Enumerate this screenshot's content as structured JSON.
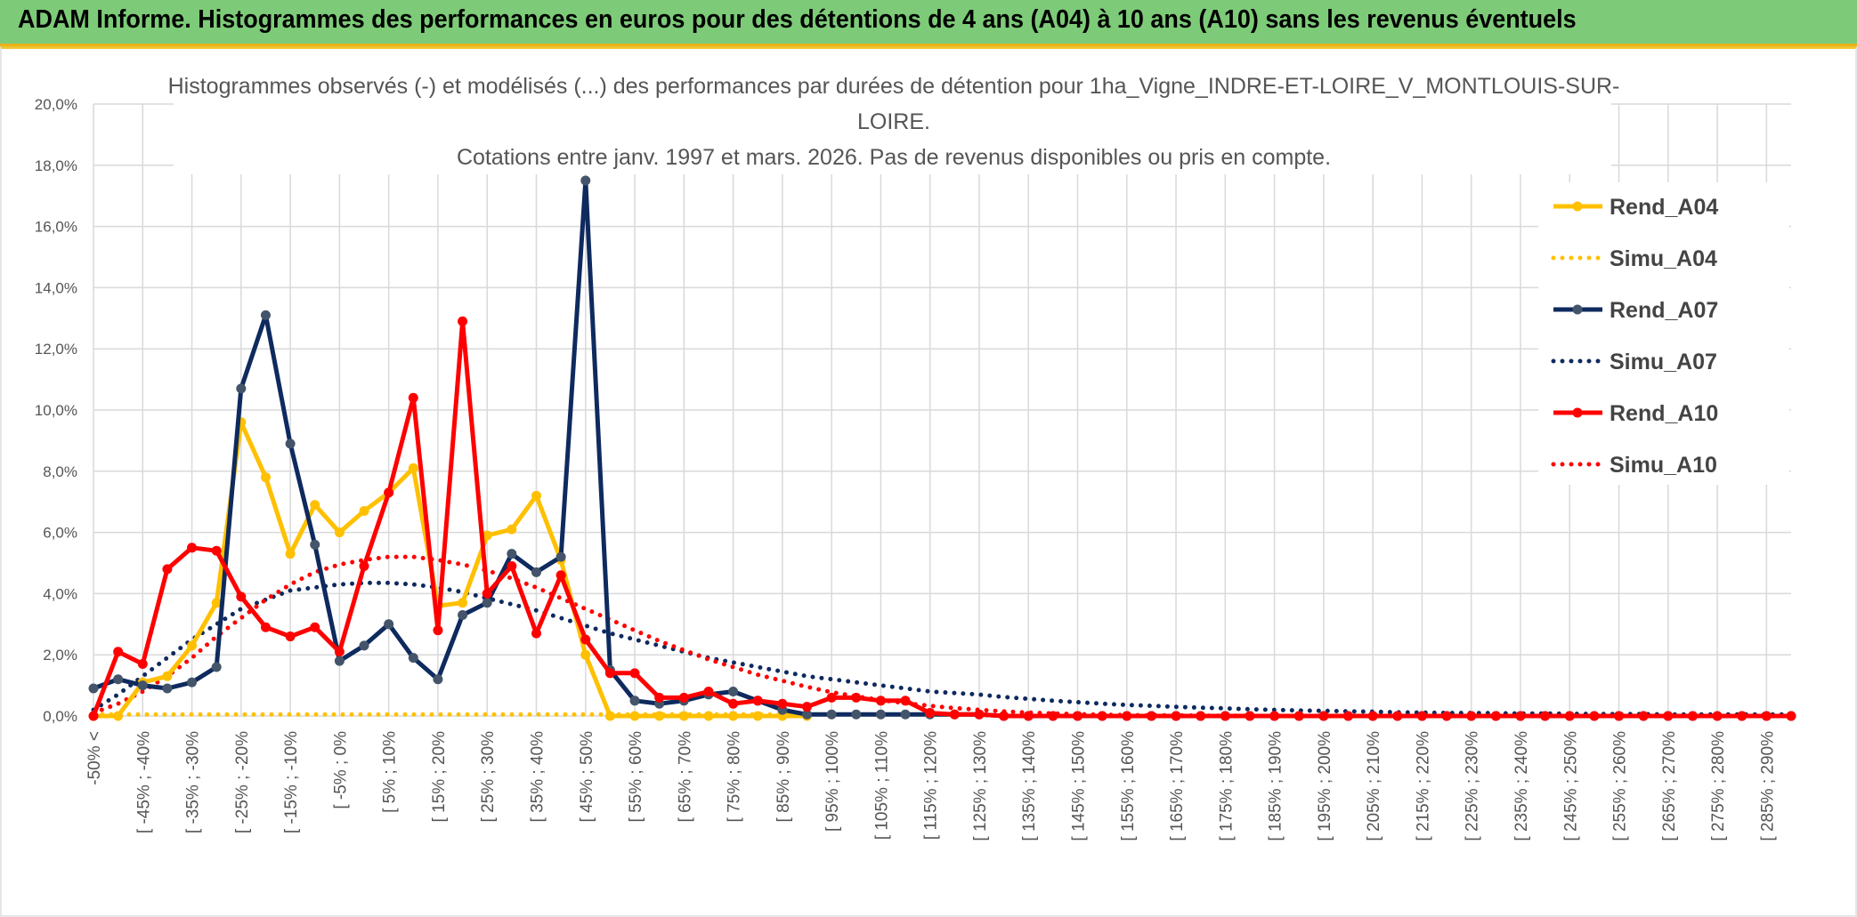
{
  "header": {
    "title": "ADAM Informe. Histogrammes des performances en euros pour des détentions de 4 ans (A04) à 10 ans (A10) sans les revenus éventuels"
  },
  "colors": {
    "header_bg": "#7dcb78",
    "accent": "#e9b21a",
    "A04": "#ffc000",
    "A07": "#0e2a5e",
    "A10": "#ff0000",
    "grid": "#d9d9d9"
  },
  "chart_data": {
    "type": "line",
    "title_lines": [
      "Histogrammes observés (-) et modélisés (...) des performances par durées de détention pour 1ha_Vigne_INDRE-ET-LOIRE_V_MONTLOUIS-SUR-",
      "LOIRE.",
      "Cotations entre janv. 1997 et mars. 2026. Pas de revenus disponibles ou pris en compte."
    ],
    "ylim": [
      0,
      20
    ],
    "y_ticks": [
      "0,0%",
      "2,0%",
      "4,0%",
      "6,0%",
      "8,0%",
      "10,0%",
      "12,0%",
      "14,0%",
      "16,0%",
      "18,0%",
      "20,0%"
    ],
    "legend_position": "right",
    "x_labels": [
      "-50% <",
      "[ -45% ; -40%",
      "[ -35% ; -30%",
      "[ -25% ; -20%",
      "[ -15% ; -10%",
      "[ -5% ; 0%",
      "[ 5% ; 10%",
      "[ 15% ; 20%",
      "[ 25% ; 30%",
      "[ 35% ; 40%",
      "[ 45% ; 50%",
      "[ 55% ; 60%",
      "[ 65% ; 70%",
      "[ 75% ; 80%",
      "[ 85% ; 90%",
      "[ 95% ; 100%",
      "[ 105% ; 110%",
      "[ 115% ; 120%",
      "[ 125% ; 130%",
      "[ 135% ; 140%",
      "[ 145% ; 150%",
      "[ 155% ; 160%",
      "[ 165% ; 170%",
      "[ 175% ; 180%",
      "[ 185% ; 190%",
      "[ 195% ; 200%",
      "[ 205% ; 210%",
      "[ 215% ; 220%",
      "[ 225% ; 230%",
      "[ 235% ; 240%",
      "[ 245% ; 250%",
      "[ 255% ; 260%",
      "[ 265% ; 270%",
      "[ 275% ; 280%",
      "[ 285% ; 290%"
    ],
    "series": [
      {
        "name": "Rend_A04",
        "style": "solid",
        "color": "#ffc000",
        "values": [
          0.0,
          0.0,
          1.1,
          1.3,
          2.3,
          3.7,
          9.6,
          7.8,
          5.3,
          6.9,
          6.0,
          6.7,
          7.3,
          8.1,
          3.6,
          3.7,
          5.9,
          6.1,
          7.2,
          5.1,
          2.0,
          0.0,
          0.0,
          0.0,
          0.0,
          0.0,
          0.0,
          0.0,
          0.0,
          0.0
        ]
      },
      {
        "name": "Simu_A04",
        "style": "dotted",
        "color": "#ffc000",
        "values": [
          0.05,
          0.05,
          0.05,
          0.05,
          0.05,
          0.05,
          0.05,
          0.05,
          0.05,
          0.05,
          0.05,
          0.05,
          0.05,
          0.05,
          0.05,
          0.05,
          0.05,
          0.05,
          0.05,
          0.05,
          0.05,
          0.05,
          0.05,
          0.05,
          0.05,
          0.05,
          0.05,
          0.05,
          0.05,
          0.05
        ]
      },
      {
        "name": "Rend_A07",
        "style": "solid",
        "color": "#0e2a5e",
        "values": [
          0.9,
          1.2,
          1.0,
          0.9,
          1.1,
          1.6,
          10.7,
          13.1,
          8.9,
          5.6,
          1.8,
          2.3,
          3.0,
          1.9,
          1.2,
          3.3,
          3.7,
          5.3,
          4.7,
          5.2,
          17.5,
          1.5,
          0.5,
          0.4,
          0.5,
          0.7,
          0.8,
          0.5,
          0.2,
          0.05,
          0.05,
          0.05,
          0.05,
          0.05,
          0.05,
          0.05,
          0.05,
          0.0,
          0.0,
          0.0,
          0.0,
          0.0,
          0.0,
          0.0,
          0.0,
          0.0,
          0.0,
          0.0,
          0.0,
          0.0,
          0.0,
          0.0,
          0.0,
          0.0,
          0.0,
          0.0,
          0.0,
          0.0,
          0.0,
          0.0,
          0.0,
          0.0,
          0.0,
          0.0,
          0.0,
          0.0,
          0.0,
          0.0,
          0.0,
          0.0
        ]
      },
      {
        "name": "Simu_A07",
        "style": "dotted",
        "color": "#0e2a5e",
        "values": [
          0.2,
          0.7,
          1.3,
          1.9,
          2.5,
          3.0,
          3.5,
          3.8,
          4.1,
          4.2,
          4.3,
          4.35,
          4.35,
          4.3,
          4.2,
          4.05,
          3.85,
          3.65,
          3.45,
          3.2,
          2.95,
          2.7,
          2.5,
          2.3,
          2.1,
          1.9,
          1.75,
          1.6,
          1.45,
          1.3,
          1.2,
          1.1,
          1.0,
          0.9,
          0.8,
          0.75,
          0.7,
          0.62,
          0.56,
          0.5,
          0.45,
          0.4,
          0.36,
          0.33,
          0.3,
          0.27,
          0.25,
          0.22,
          0.2,
          0.18,
          0.17,
          0.15,
          0.14,
          0.12,
          0.11,
          0.1,
          0.1,
          0.09,
          0.08,
          0.08,
          0.07,
          0.07,
          0.06,
          0.06,
          0.05,
          0.05,
          0.05,
          0.05,
          0.05,
          0.05
        ]
      },
      {
        "name": "Rend_A10",
        "style": "solid",
        "color": "#ff0000",
        "values": [
          0.0,
          2.1,
          1.7,
          4.8,
          5.5,
          5.4,
          3.9,
          2.9,
          2.6,
          2.9,
          2.1,
          4.9,
          7.3,
          10.4,
          2.8,
          12.9,
          4.0,
          4.9,
          2.7,
          4.6,
          2.5,
          1.4,
          1.4,
          0.6,
          0.6,
          0.8,
          0.4,
          0.5,
          0.4,
          0.3,
          0.6,
          0.6,
          0.5,
          0.5,
          0.1,
          0.05,
          0.05,
          0.0,
          0.0,
          0.0,
          0.0,
          0.0,
          0.0,
          0.0,
          0.0,
          0.0,
          0.0,
          0.0,
          0.0,
          0.0,
          0.0,
          0.0,
          0.0,
          0.0,
          0.0,
          0.0,
          0.0,
          0.0,
          0.0,
          0.0,
          0.0,
          0.0,
          0.0,
          0.0,
          0.0,
          0.0,
          0.0,
          0.0,
          0.0,
          0.0
        ]
      },
      {
        "name": "Simu_A10",
        "style": "dotted",
        "color": "#ff0000",
        "values": [
          0.1,
          0.4,
          0.8,
          1.3,
          1.9,
          2.6,
          3.2,
          3.8,
          4.3,
          4.7,
          4.95,
          5.1,
          5.2,
          5.2,
          5.1,
          4.95,
          4.75,
          4.5,
          4.2,
          3.85,
          3.5,
          3.15,
          2.8,
          2.45,
          2.15,
          1.85,
          1.6,
          1.35,
          1.15,
          0.95,
          0.78,
          0.64,
          0.52,
          0.42,
          0.33,
          0.26,
          0.2,
          0.15,
          0.11,
          0.08,
          0.06,
          0.04,
          0.03,
          0.02,
          0.02,
          0.01,
          0.01,
          0.01,
          0.0,
          0.0,
          0.0,
          0.0,
          0.0,
          0.0,
          0.0,
          0.0,
          0.0,
          0.0,
          0.0,
          0.0,
          0.0,
          0.0,
          0.0,
          0.0,
          0.0,
          0.0,
          0.0,
          0.0,
          0.0,
          0.0
        ]
      }
    ]
  }
}
